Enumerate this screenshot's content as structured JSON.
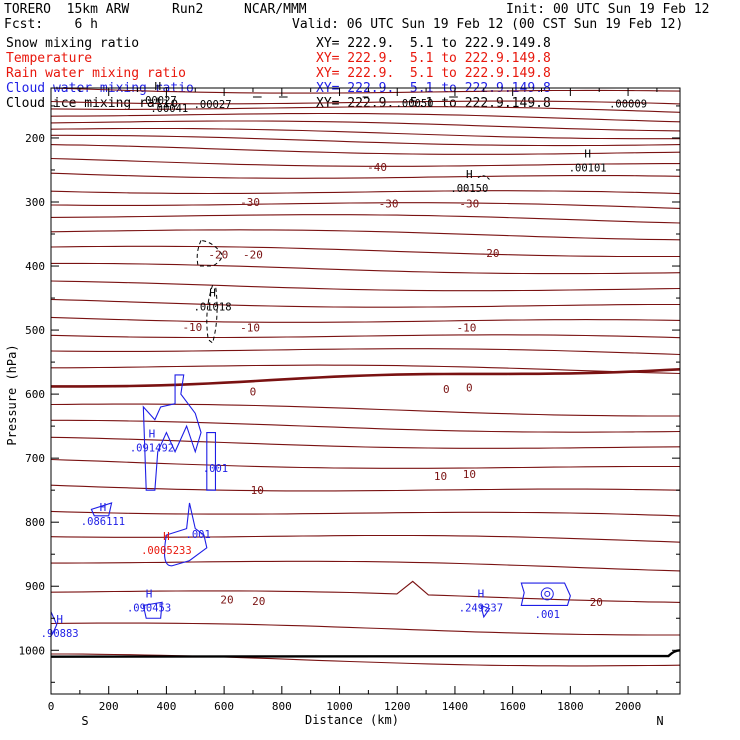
{
  "header": {
    "model": "TORERO  15km ARW",
    "run": "Run2",
    "org": "NCAR/MMM",
    "init": "Init: 00 UTC Sun 19 Feb 12",
    "fcst": "Fcst:    6 h",
    "valid": "Valid: 06 UTC Sun 19 Feb 12 (00 CST Sun 19 Feb 12)"
  },
  "legend": [
    {
      "field": "Snow mixing ratio",
      "xy": "XY= 222.9.  5.1 to 222.9.149.8",
      "color": "#000000"
    },
    {
      "field": "Temperature",
      "xy": "XY= 222.9.  5.1 to 222.9.149.8",
      "color": "#e8170c"
    },
    {
      "field": "Rain water mixing ratio",
      "xy": "XY= 222.9.  5.1 to 222.9.149.8",
      "color": "#e8170c"
    },
    {
      "field": "Cloud water mixing ratio",
      "xy": "XY= 222.9.  5.1 to 222.9.149.8",
      "color": "#1e1ee6"
    },
    {
      "field": "Cloud ice mixing ratio",
      "xy": "XY= 222.9.  5.1 to 222.9.149.8",
      "color": "#000000"
    }
  ],
  "colors": {
    "temperature": "#7a1212",
    "cloud_water": "#1e1ee6",
    "rain": "#e8170c",
    "ink": "#000000"
  },
  "chart_data": {
    "type": "contour",
    "xlabel": "Distance (km)",
    "ylabel": "Pressure (hPa)",
    "xlim": [
      0,
      2180
    ],
    "ylim": [
      1050,
      125
    ],
    "xticks": [
      0,
      200,
      400,
      600,
      800,
      1000,
      1200,
      1400,
      1600,
      1800,
      2000
    ],
    "yticks": [
      200,
      300,
      400,
      500,
      600,
      700,
      800,
      900,
      1000
    ],
    "left_end": "S",
    "right_end": "N",
    "temperature_isotherm_pressures": [
      122,
      140,
      150,
      162,
      175,
      188,
      200,
      215,
      235,
      255,
      280,
      300,
      320,
      345,
      372,
      400,
      428,
      455,
      480,
      505,
      528,
      555,
      588,
      618,
      645,
      672,
      705,
      742,
      780,
      818,
      860,
      908,
      960,
      1010
    ],
    "temperature_labels": [
      {
        "text": "-40",
        "x": 1130,
        "p": 245
      },
      {
        "text": "-30",
        "x": 690,
        "p": 300
      },
      {
        "text": "-30",
        "x": 1170,
        "p": 302
      },
      {
        "text": "-30",
        "x": 1450,
        "p": 302
      },
      {
        "text": "-20",
        "x": 580,
        "p": 382
      },
      {
        "text": "-20",
        "x": 700,
        "p": 382
      },
      {
        "text": "-20",
        "x": 1520,
        "p": 380
      },
      {
        "text": "-10",
        "x": 490,
        "p": 495
      },
      {
        "text": "-10",
        "x": 690,
        "p": 496
      },
      {
        "text": "-10",
        "x": 1440,
        "p": 496
      },
      {
        "text": "0",
        "x": 700,
        "p": 596
      },
      {
        "text": "0",
        "x": 1370,
        "p": 592
      },
      {
        "text": "0",
        "x": 1450,
        "p": 590
      },
      {
        "text": "10",
        "x": 715,
        "p": 750
      },
      {
        "text": "10",
        "x": 1350,
        "p": 728
      },
      {
        "text": "10",
        "x": 1450,
        "p": 725
      },
      {
        "text": "20",
        "x": 610,
        "p": 921
      },
      {
        "text": "20",
        "x": 720,
        "p": 923
      },
      {
        "text": "20",
        "x": 1890,
        "p": 925
      }
    ],
    "extrema_markers": [
      {
        "letter": "H",
        "value": ".00027",
        "x": 370,
        "p": 138,
        "field": "snow"
      },
      {
        "letter": "",
        "value": ".00027",
        "x": 560,
        "p": 144,
        "field": "snow"
      },
      {
        "letter": "",
        "value": ".00041",
        "x": 410,
        "p": 150,
        "field": "snow"
      },
      {
        "letter": "",
        "value": ".00050",
        "x": 1260,
        "p": 142,
        "field": "snow"
      },
      {
        "letter": "",
        "value": ".00009",
        "x": 2000,
        "p": 143,
        "field": "snow"
      },
      {
        "letter": "H",
        "value": ".00101",
        "x": 1860,
        "p": 243,
        "field": "snow"
      },
      {
        "letter": "H",
        "value": ".00150",
        "x": 1450,
        "p": 275,
        "field": "snow"
      },
      {
        "letter": "H",
        "value": ".01018",
        "x": 560,
        "p": 460,
        "field": "ice"
      },
      {
        "letter": "H",
        "value": ".091492",
        "x": 350,
        "p": 680,
        "field": "cloud"
      },
      {
        "letter": "",
        "value": ".001",
        "x": 570,
        "p": 712,
        "field": "cloud"
      },
      {
        "letter": "H",
        "value": ".086111",
        "x": 180,
        "p": 795,
        "field": "cloud"
      },
      {
        "letter": "",
        "value": ".001",
        "x": 510,
        "p": 815,
        "field": "cloud"
      },
      {
        "letter": "H",
        "value": ".0005233",
        "x": 400,
        "p": 840,
        "field": "rain"
      },
      {
        "letter": "H",
        "value": ".090453",
        "x": 340,
        "p": 930,
        "field": "cloud"
      },
      {
        "letter": "H",
        "value": ".249237",
        "x": 1490,
        "p": 930,
        "field": "cloud"
      },
      {
        "letter": "",
        "value": ".001",
        "x": 1720,
        "p": 940,
        "field": "cloud"
      },
      {
        "letter": "H",
        "value": ".90883",
        "x": 30,
        "p": 970,
        "field": "cloud"
      }
    ]
  }
}
